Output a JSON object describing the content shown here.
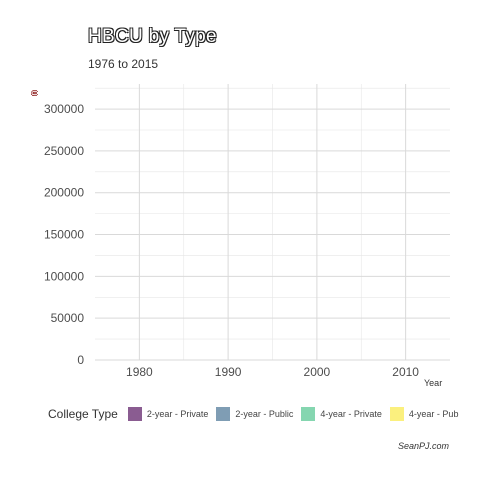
{
  "chart": {
    "title": "HBCU by Type",
    "subtitle": "1976 to 2015",
    "ylabel": "n",
    "xlabel": "Year",
    "caption": "SeanPJ.com"
  },
  "legend": {
    "title": "College Type",
    "items": [
      {
        "label": "2-year - Private",
        "color": "#8a5c91"
      },
      {
        "label": "2-year - Public",
        "color": "#7f9db4"
      },
      {
        "label": "4-year - Private",
        "color": "#85d6b0"
      },
      {
        "label": "4-year - Pub",
        "color": "#fbf07e"
      }
    ]
  },
  "chart_data": {
    "type": "area",
    "title": "HBCU by Type",
    "subtitle": "1976 to 2015",
    "xlabel": "Year",
    "ylabel": "n",
    "xlim": [
      1975,
      2015
    ],
    "ylim": [
      0,
      330000
    ],
    "x_ticks": [
      1980,
      1990,
      2000,
      2010
    ],
    "y_ticks": [
      0,
      50000,
      100000,
      150000,
      200000,
      250000,
      300000
    ],
    "grid": true,
    "legend_position": "bottom",
    "series": [
      {
        "name": "2-year - Private",
        "values": []
      },
      {
        "name": "2-year - Public",
        "values": []
      },
      {
        "name": "4-year - Private",
        "values": []
      },
      {
        "name": "4-year - Pub",
        "values": []
      }
    ]
  }
}
